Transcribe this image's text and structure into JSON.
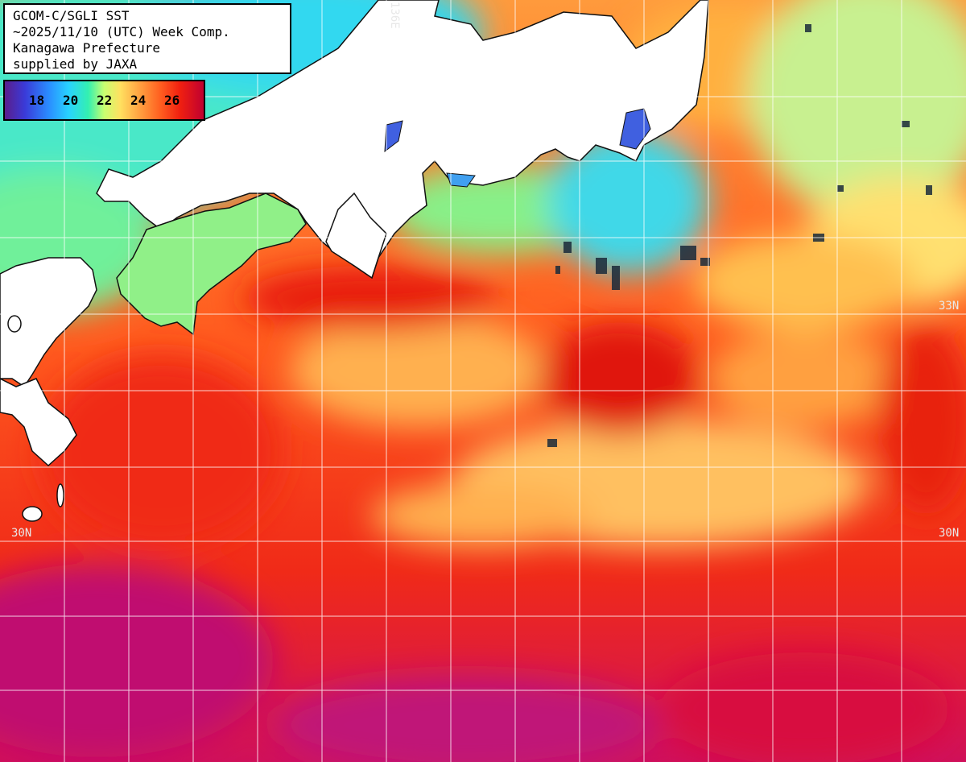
{
  "header": {
    "line1": "GCOM-C/SGLI SST",
    "line2": "~2025/11/10 (UTC) Week Comp.",
    "line3": "Kanagawa Prefecture",
    "line4": "supplied by JAXA"
  },
  "colorbar": {
    "ticks": [
      "18",
      "20",
      "22",
      "24",
      "26"
    ]
  },
  "grid_labels": {
    "lon_136": "136E",
    "lat_33_right": "33N",
    "lat_30_left": "30N",
    "lat_30_right": "30N"
  },
  "colors": {
    "land": "#ffffff",
    "grid": "#ffffff",
    "warm_water": "#f03a14",
    "cool_water": "#7cf0a0"
  }
}
